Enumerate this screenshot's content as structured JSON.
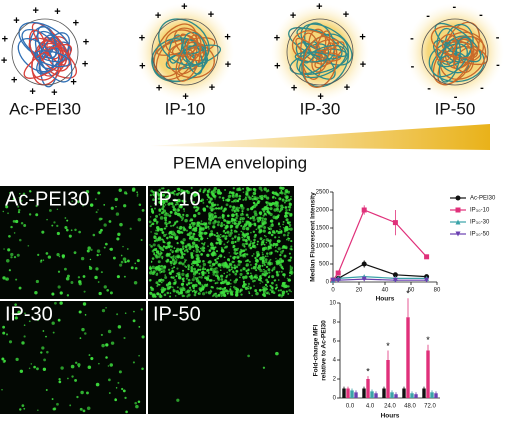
{
  "particles": [
    {
      "label": "Ac-PEI30",
      "charge": "+"
    },
    {
      "label": "IP-10",
      "charge": "+"
    },
    {
      "label": "IP-30",
      "charge": "+"
    },
    {
      "label": "IP-50",
      "charge": "-"
    }
  ],
  "gradient_label": "PEMA enveloping",
  "micrographs": {
    "labels": [
      "Ac-PEI30",
      "IP-10",
      "IP-30",
      "IP-50"
    ]
  },
  "chart_data": [
    {
      "type": "line",
      "ylabel": "Median Fluorescent Intensity",
      "xlabel": "Hours",
      "x": [
        0,
        4,
        24,
        48,
        72
      ],
      "xlim": [
        0,
        80
      ],
      "xticks": [
        0,
        20,
        40,
        60,
        80
      ],
      "ylim": [
        0,
        2500
      ],
      "yticks": [
        0,
        500,
        1000,
        1500,
        2000,
        2500
      ],
      "series": [
        {
          "name": "Ac-PEI30",
          "color": "#111111",
          "marker": "circle",
          "values": [
            50,
            100,
            500,
            200,
            150
          ],
          "errors": [
            10,
            20,
            100,
            30,
            20
          ]
        },
        {
          "name": "IP₃₀-10",
          "color": "#e0307a",
          "marker": "square",
          "values": [
            50,
            250,
            2000,
            1650,
            700
          ],
          "errors": [
            10,
            50,
            130,
            350,
            50
          ]
        },
        {
          "name": "IP₃₀-30",
          "color": "#3aa3a8",
          "marker": "triangle",
          "values": [
            50,
            100,
            150,
            100,
            100
          ],
          "errors": [
            10,
            20,
            30,
            20,
            20
          ]
        },
        {
          "name": "IP₃₀-50",
          "color": "#6a3fb0",
          "marker": "triangle-down",
          "values": [
            50,
            50,
            80,
            50,
            50
          ],
          "errors": [
            10,
            10,
            20,
            10,
            10
          ]
        }
      ]
    },
    {
      "type": "bar",
      "ylabel": [
        "Fold-change MFI",
        "relative to Ac-PEI30"
      ],
      "xlabel": "Hours",
      "categories": [
        "0.0",
        "4.0",
        "24.0",
        "48.0",
        "72.0"
      ],
      "ylim": [
        0,
        10
      ],
      "yticks": [
        0,
        2,
        4,
        6,
        8,
        10
      ],
      "significance_labels": [
        null,
        "*",
        "*",
        "*",
        "*"
      ],
      "series": [
        {
          "name": "Ac-PEI30",
          "color": "#111111",
          "values": [
            1,
            1,
            1,
            1,
            1
          ],
          "errors": [
            0.2,
            0.2,
            0.2,
            0.2,
            0.2
          ]
        },
        {
          "name": "IP₃₀-10",
          "color": "#e0307a",
          "values": [
            1,
            2,
            4,
            8.5,
            5
          ],
          "errors": [
            0.2,
            0.3,
            1,
            2,
            0.6
          ]
        },
        {
          "name": "IP₃₀-30",
          "color": "#3aa3a8",
          "values": [
            0.8,
            0.7,
            0.6,
            0.5,
            0.6
          ],
          "errors": [
            0.2,
            0.2,
            0.2,
            0.2,
            0.2
          ]
        },
        {
          "name": "IP₃₀-50",
          "color": "#6a3fb0",
          "values": [
            0.6,
            0.5,
            0.4,
            0.4,
            0.5
          ],
          "errors": [
            0.2,
            0.2,
            0.2,
            0.2,
            0.2
          ]
        }
      ]
    }
  ]
}
